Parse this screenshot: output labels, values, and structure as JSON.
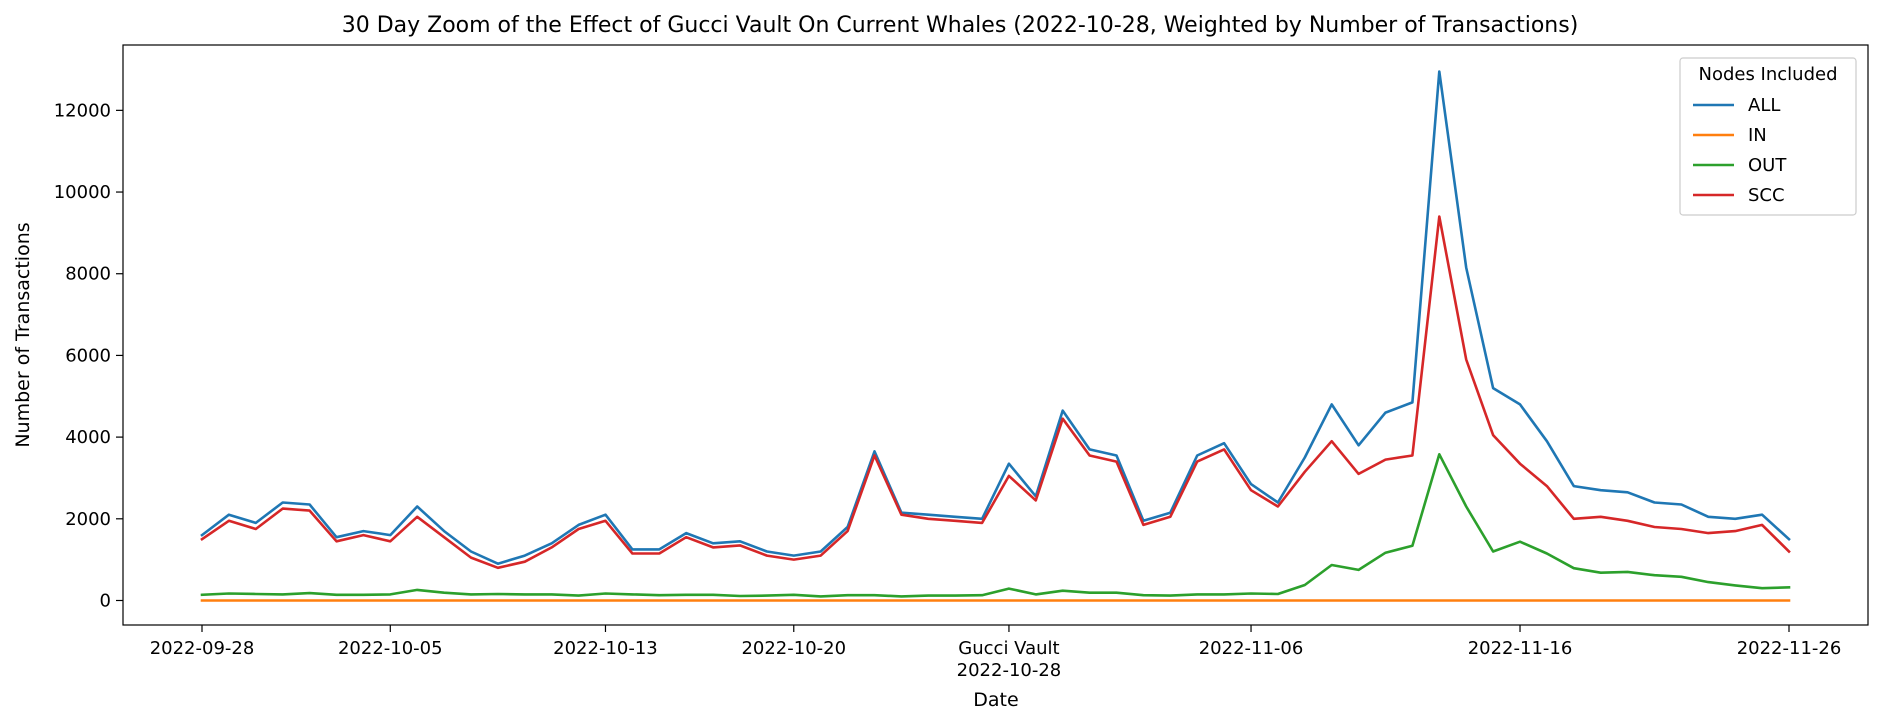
{
  "chart_data": {
    "type": "line",
    "title": "30 Day Zoom of the Effect of Gucci Vault On Current Whales (2022-10-28, Weighted by Number of Transactions)",
    "xlabel": "Date",
    "ylabel": "Number of Transactions",
    "x_start": "2022-09-28",
    "x_end": "2022-11-26",
    "ylim": [
      -600,
      13600
    ],
    "yticks": [
      0,
      2000,
      4000,
      6000,
      8000,
      10000,
      12000
    ],
    "xticks": [
      {
        "date": "2022-09-28",
        "lines": [
          "2022-09-28"
        ]
      },
      {
        "date": "2022-10-05",
        "lines": [
          "2022-10-05"
        ]
      },
      {
        "date": "2022-10-13",
        "lines": [
          "2022-10-13"
        ]
      },
      {
        "date": "2022-10-20",
        "lines": [
          "2022-10-20"
        ]
      },
      {
        "date": "2022-10-28",
        "lines": [
          "Gucci Vault",
          "2022-10-28"
        ]
      },
      {
        "date": "2022-11-06",
        "lines": [
          "2022-11-06"
        ]
      },
      {
        "date": "2022-11-16",
        "lines": [
          "2022-11-16"
        ]
      },
      {
        "date": "2022-11-26",
        "lines": [
          "2022-11-26"
        ]
      }
    ],
    "grid": false,
    "legend": {
      "title": "Nodes Included",
      "position": "top-right"
    },
    "x": [
      "2022-09-28",
      "2022-09-29",
      "2022-09-30",
      "2022-10-01",
      "2022-10-02",
      "2022-10-03",
      "2022-10-04",
      "2022-10-05",
      "2022-10-06",
      "2022-10-07",
      "2022-10-08",
      "2022-10-09",
      "2022-10-10",
      "2022-10-11",
      "2022-10-12",
      "2022-10-13",
      "2022-10-14",
      "2022-10-15",
      "2022-10-16",
      "2022-10-17",
      "2022-10-18",
      "2022-10-19",
      "2022-10-20",
      "2022-10-21",
      "2022-10-22",
      "2022-10-23",
      "2022-10-24",
      "2022-10-25",
      "2022-10-26",
      "2022-10-27",
      "2022-10-28",
      "2022-10-29",
      "2022-10-30",
      "2022-10-31",
      "2022-11-01",
      "2022-11-02",
      "2022-11-03",
      "2022-11-04",
      "2022-11-05",
      "2022-11-06",
      "2022-11-07",
      "2022-11-08",
      "2022-11-09",
      "2022-11-10",
      "2022-11-11",
      "2022-11-12",
      "2022-11-13",
      "2022-11-14",
      "2022-11-15",
      "2022-11-16",
      "2022-11-17",
      "2022-11-18",
      "2022-11-19",
      "2022-11-20",
      "2022-11-21",
      "2022-11-22",
      "2022-11-23",
      "2022-11-24",
      "2022-11-25",
      "2022-11-26"
    ],
    "series": [
      {
        "name": "ALL",
        "color": "#1f77b4",
        "values": [
          1600,
          2100,
          1900,
          2400,
          2350,
          1550,
          1700,
          1600,
          2300,
          1700,
          1200,
          900,
          1100,
          1400,
          1850,
          2100,
          1250,
          1250,
          1650,
          1400,
          1450,
          1200,
          1100,
          1200,
          1800,
          3650,
          2150,
          2100,
          2050,
          2000,
          3350,
          2550,
          4650,
          3700,
          3550,
          1950,
          2150,
          3550,
          3850,
          2850,
          2400,
          3500,
          4800,
          3800,
          4600,
          4850,
          12950,
          8150,
          5200,
          4800,
          3900,
          2800,
          2700,
          2650,
          2400,
          2350,
          2050,
          2000,
          2100,
          1500
        ]
      },
      {
        "name": "IN",
        "color": "#ff7f0e",
        "values": [
          0,
          0,
          0,
          0,
          0,
          0,
          0,
          0,
          0,
          0,
          0,
          0,
          0,
          0,
          0,
          0,
          0,
          0,
          0,
          0,
          0,
          0,
          0,
          0,
          0,
          0,
          0,
          0,
          0,
          0,
          0,
          0,
          0,
          0,
          0,
          0,
          0,
          0,
          0,
          0,
          0,
          0,
          0,
          0,
          0,
          0,
          0,
          0,
          0,
          0,
          0,
          0,
          0,
          0,
          0,
          0,
          0,
          0,
          0,
          0
        ]
      },
      {
        "name": "OUT",
        "color": "#2ca02c",
        "values": [
          140,
          170,
          160,
          150,
          180,
          140,
          140,
          150,
          260,
          190,
          150,
          160,
          150,
          150,
          120,
          170,
          150,
          130,
          140,
          140,
          110,
          120,
          140,
          100,
          130,
          130,
          100,
          120,
          120,
          130,
          290,
          150,
          240,
          190,
          190,
          130,
          120,
          150,
          150,
          170,
          160,
          380,
          870,
          750,
          1170,
          1340,
          3580,
          2300,
          1200,
          1440,
          1150,
          790,
          680,
          700,
          620,
          580,
          450,
          370,
          300,
          320
        ]
      },
      {
        "name": "SCC",
        "color": "#d62728",
        "values": [
          1500,
          1950,
          1750,
          2250,
          2200,
          1450,
          1600,
          1450,
          2050,
          1550,
          1050,
          800,
          950,
          1300,
          1750,
          1950,
          1150,
          1150,
          1550,
          1300,
          1350,
          1100,
          1000,
          1100,
          1700,
          3550,
          2100,
          2000,
          1950,
          1900,
          3050,
          2450,
          4450,
          3550,
          3400,
          1850,
          2050,
          3400,
          3700,
          2700,
          2300,
          3150,
          3900,
          3100,
          3450,
          3550,
          9400,
          5900,
          4050,
          3350,
          2800,
          2000,
          2050,
          1950,
          1800,
          1750,
          1650,
          1700,
          1850,
          1200
        ]
      }
    ]
  }
}
